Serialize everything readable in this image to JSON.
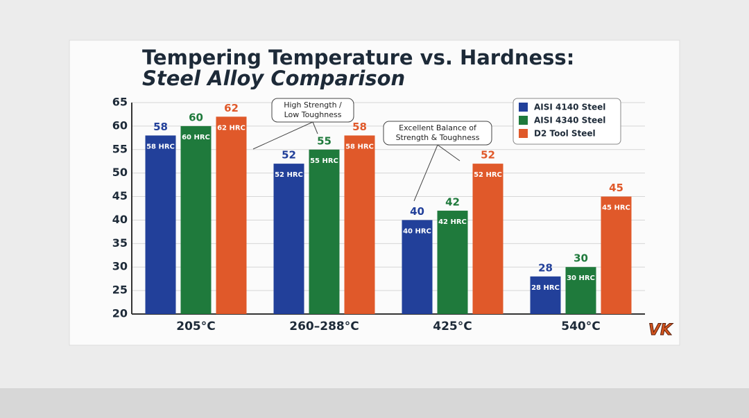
{
  "chart_data": {
    "type": "bar",
    "title": [
      "Tempering Temperature vs. Hardness:",
      "Steel Alloy Comparison"
    ],
    "categories": [
      "205°C",
      "260–288°C",
      "425°C",
      "540°C"
    ],
    "series": [
      {
        "name": "AISI 4140 Steel",
        "color": "#22409a",
        "values": [
          58,
          52,
          40,
          28
        ],
        "value_labels": [
          "58 HRC",
          "52 HRC",
          "40 HRC",
          "28 HRC"
        ]
      },
      {
        "name": "AISI 4340 Steel",
        "color": "#1f7a3c",
        "values": [
          60,
          55,
          42,
          30
        ],
        "value_labels": [
          "60 HRC",
          "55 HRC",
          "42 HRC",
          "30 HRC"
        ]
      },
      {
        "name": "D2 Tool Steel",
        "color": "#e0592a",
        "values": [
          62,
          58,
          52,
          45
        ],
        "value_labels": [
          "62 HRC",
          "58 HRC",
          "52 HRC",
          "45 HRC"
        ]
      }
    ],
    "ylim": [
      20,
      65
    ],
    "yticks": [
      20,
      25,
      30,
      35,
      40,
      45,
      50,
      55,
      60,
      65
    ],
    "grid": true,
    "legend": "top-right",
    "annotations": [
      {
        "lines": [
          "High Strength /",
          "Low Toughness"
        ]
      },
      {
        "lines": [
          "Excellent Balance of",
          "Strength & Toughness"
        ]
      }
    ],
    "logo": "VK"
  }
}
